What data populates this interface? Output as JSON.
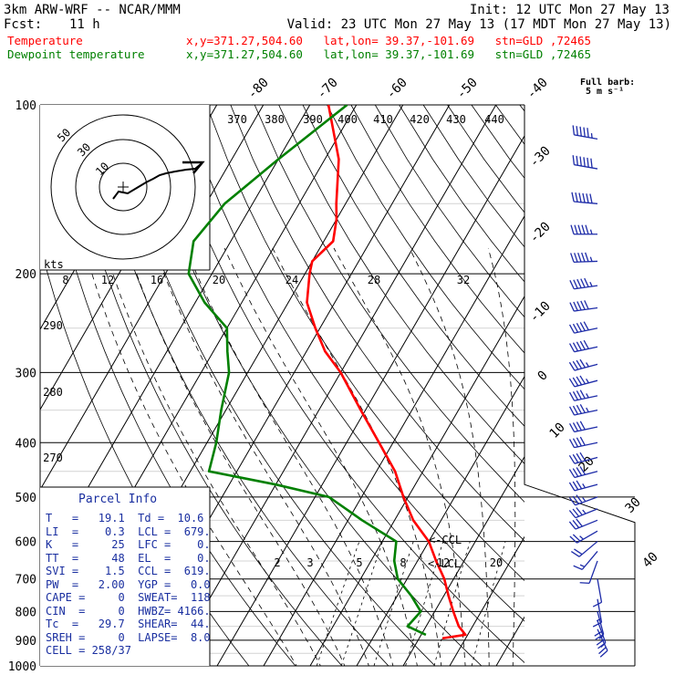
{
  "header": {
    "model": "3km ARW-WRF -- NCAR/MMM",
    "init": "Init: 12 UTC Mon 27 May 13",
    "fcst_label": "Fcst:",
    "fcst_value": "11 h",
    "valid": "Valid: 23 UTC Mon 27 May 13 (17 MDT Mon 27 May 13)"
  },
  "legend": [
    {
      "name": "Temperature",
      "info": "x,y=371.27,504.60   lat,lon= 39.37,-101.69   stn=GLD ,72465",
      "color": "#ff0000"
    },
    {
      "name": "Dewpoint temperature",
      "info": "x,y=371.27,504.60   lat,lon= 39.37,-101.69   stn=GLD ,72465",
      "color": "#008000"
    }
  ],
  "barb_label": [
    "Full barb:",
    "5 m s⁻¹"
  ],
  "parcel_info": {
    "title": "Parcel Info",
    "rows": [
      "T   =   19.1  Td =  10.6",
      "LI  =    0.3  LCL =  679.",
      "K   =     25  LFC =    0.",
      "TT  =     48  EL  =    0.",
      "SVI =    1.5  CCL =  619.",
      "PW  =   2.00  YGP =   0.0",
      "CAPE =     0  SWEAT=  118",
      "CIN  =     0  HWBZ= 4166.",
      "Tc  =   29.7  SHEAR=  44.",
      "SREH =     0  LAPSE=  8.0",
      "CELL = 258/37"
    ]
  },
  "chart_data": {
    "type": "line",
    "title": "",
    "y_axis": {
      "label": "",
      "ticks": [
        100,
        200,
        300,
        400,
        500,
        600,
        700,
        800,
        900,
        1000
      ],
      "scale": "log-pressure",
      "range": [
        1000,
        100
      ]
    },
    "isotherm_labels": [
      -80,
      -70,
      -60,
      -50,
      -40,
      -30,
      -20,
      -10,
      0,
      10,
      20,
      30,
      40
    ],
    "theta_labels": [
      370,
      380,
      390,
      400,
      410,
      420,
      430,
      440
    ],
    "theta_left_labels": [
      290,
      280,
      270
    ],
    "mixing_ratio_labels": [
      2,
      3,
      5,
      8,
      12,
      20
    ],
    "hodograph": {
      "ring_labels": [
        10,
        30,
        50
      ],
      "axis_ticks": [
        8,
        12,
        16,
        20,
        24,
        28,
        32
      ],
      "unit": "kts"
    },
    "level_labels": [
      {
        "text": "<-CCL",
        "p": 619
      },
      {
        "text": "<-LCL",
        "p": 679
      }
    ],
    "series": [
      {
        "name": "Temperature",
        "color": "#ff0000",
        "points": [
          [
            100,
            -76
          ],
          [
            125,
            -67
          ],
          [
            150,
            -62
          ],
          [
            160,
            -60
          ],
          [
            175,
            -58
          ],
          [
            190,
            -60
          ],
          [
            200,
            -59
          ],
          [
            225,
            -56
          ],
          [
            250,
            -51
          ],
          [
            275,
            -46
          ],
          [
            300,
            -40
          ],
          [
            350,
            -31
          ],
          [
            400,
            -23
          ],
          [
            450,
            -16
          ],
          [
            500,
            -11
          ],
          [
            550,
            -6
          ],
          [
            600,
            0
          ],
          [
            650,
            4
          ],
          [
            700,
            8
          ],
          [
            750,
            11
          ],
          [
            800,
            14
          ],
          [
            850,
            17
          ],
          [
            880,
            19.5
          ],
          [
            890,
            16
          ],
          [
            893,
            15
          ]
        ]
      },
      {
        "name": "Dewpoint temperature",
        "color": "#008000",
        "points": [
          [
            100,
            -72
          ],
          [
            125,
            -80
          ],
          [
            150,
            -86
          ],
          [
            175,
            -88
          ],
          [
            200,
            -85
          ],
          [
            225,
            -78
          ],
          [
            250,
            -70
          ],
          [
            275,
            -67
          ],
          [
            300,
            -64
          ],
          [
            350,
            -61
          ],
          [
            400,
            -58
          ],
          [
            450,
            -56
          ],
          [
            475,
            -40
          ],
          [
            500,
            -27
          ],
          [
            550,
            -17
          ],
          [
            600,
            -7
          ],
          [
            650,
            -5
          ],
          [
            700,
            -2
          ],
          [
            750,
            3
          ],
          [
            800,
            7
          ],
          [
            850,
            6
          ],
          [
            880,
            11
          ]
        ]
      }
    ],
    "wind_barbs": [
      {
        "p": 115,
        "dir": 280,
        "speed": 55
      },
      {
        "p": 130,
        "dir": 280,
        "speed": 60
      },
      {
        "p": 150,
        "dir": 275,
        "speed": 60
      },
      {
        "p": 170,
        "dir": 270,
        "speed": 55
      },
      {
        "p": 190,
        "dir": 268,
        "speed": 55
      },
      {
        "p": 210,
        "dir": 262,
        "speed": 55
      },
      {
        "p": 230,
        "dir": 262,
        "speed": 50
      },
      {
        "p": 250,
        "dir": 258,
        "speed": 50
      },
      {
        "p": 270,
        "dir": 258,
        "speed": 50
      },
      {
        "p": 290,
        "dir": 255,
        "speed": 45
      },
      {
        "p": 310,
        "dir": 255,
        "speed": 45
      },
      {
        "p": 330,
        "dir": 258,
        "speed": 45
      },
      {
        "p": 350,
        "dir": 258,
        "speed": 45
      },
      {
        "p": 375,
        "dir": 258,
        "speed": 40
      },
      {
        "p": 400,
        "dir": 258,
        "speed": 40
      },
      {
        "p": 425,
        "dir": 255,
        "speed": 40
      },
      {
        "p": 450,
        "dir": 255,
        "speed": 40
      },
      {
        "p": 475,
        "dir": 255,
        "speed": 35
      },
      {
        "p": 500,
        "dir": 250,
        "speed": 35
      },
      {
        "p": 525,
        "dir": 248,
        "speed": 35
      },
      {
        "p": 550,
        "dir": 248,
        "speed": 30
      },
      {
        "p": 575,
        "dir": 240,
        "speed": 25
      },
      {
        "p": 600,
        "dir": 230,
        "speed": 20
      },
      {
        "p": 625,
        "dir": 220,
        "speed": 15
      },
      {
        "p": 650,
        "dir": 200,
        "speed": 10
      },
      {
        "p": 700,
        "dir": 170,
        "speed": 10
      },
      {
        "p": 760,
        "dir": 170,
        "speed": 15
      },
      {
        "p": 800,
        "dir": 165,
        "speed": 20
      },
      {
        "p": 830,
        "dir": 160,
        "speed": 25
      },
      {
        "p": 860,
        "dir": 155,
        "speed": 25
      }
    ]
  }
}
